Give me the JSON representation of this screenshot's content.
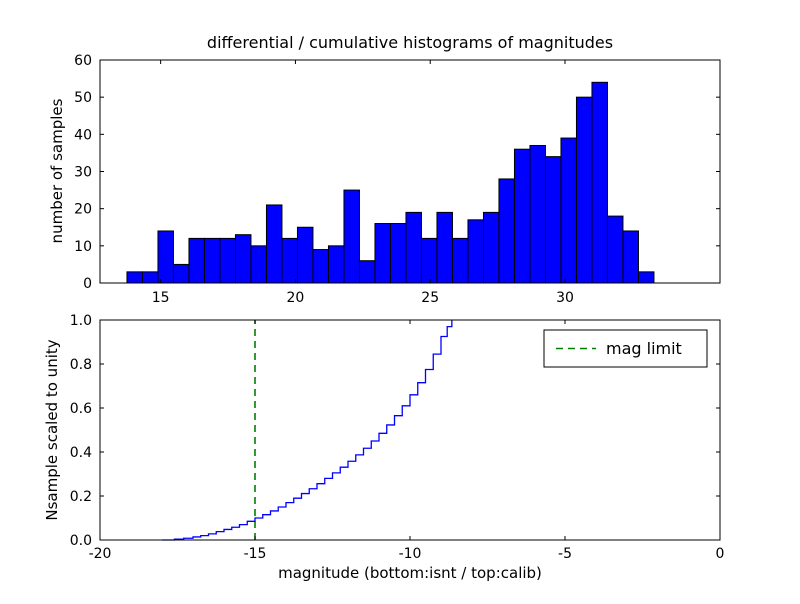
{
  "figure": {
    "background": "#ffffff",
    "frame_color": "#000000"
  },
  "chart_data": [
    {
      "type": "bar",
      "subtype": "histogram",
      "title": "differential / cumulative histograms of magnitudes",
      "xlabel": "",
      "ylabel": "number of samples",
      "bin_start": 13.75,
      "bin_width": 0.575,
      "values": [
        3,
        3,
        14,
        5,
        12,
        12,
        12,
        13,
        10,
        21,
        12,
        15,
        9,
        10,
        25,
        6,
        16,
        16,
        19,
        12,
        19,
        12,
        17,
        19,
        28,
        36,
        37,
        34,
        39,
        50,
        54,
        18,
        14,
        3
      ],
      "xlim": [
        12.75,
        35.75
      ],
      "ylim": [
        0,
        60
      ],
      "xticks": [
        15,
        20,
        25,
        30
      ],
      "xticklabels": [
        "15",
        "20",
        "25",
        "30"
      ],
      "yticks": [
        0,
        10,
        20,
        30,
        40,
        50,
        60
      ],
      "yticklabels": [
        "0",
        "10",
        "20",
        "30",
        "40",
        "50",
        "60"
      ],
      "bar_color": "#0000ff",
      "bar_edge_color": "#000000",
      "grid": false,
      "legend": null
    },
    {
      "type": "line",
      "subtype": "cumulative-step",
      "title": "",
      "xlabel": "magnitude (bottom:isnt / top:calib)",
      "ylabel": "Nsample scaled to unity",
      "x": [
        -18.0,
        -17.6,
        -17.3,
        -17.0,
        -16.75,
        -16.5,
        -16.25,
        -16.0,
        -15.75,
        -15.5,
        -15.25,
        -15.0,
        -14.75,
        -14.5,
        -14.25,
        -14.0,
        -13.75,
        -13.5,
        -13.25,
        -13.0,
        -12.75,
        -12.5,
        -12.25,
        -12.0,
        -11.75,
        -11.5,
        -11.25,
        -11.0,
        -10.75,
        -10.5,
        -10.25,
        -10.0,
        -9.75,
        -9.5,
        -9.25,
        -9.0,
        -8.8,
        -8.65
      ],
      "y": [
        0.0,
        0.004,
        0.008,
        0.014,
        0.02,
        0.028,
        0.038,
        0.048,
        0.058,
        0.07,
        0.085,
        0.1,
        0.115,
        0.132,
        0.15,
        0.17,
        0.19,
        0.211,
        0.233,
        0.256,
        0.28,
        0.305,
        0.331,
        0.358,
        0.387,
        0.417,
        0.45,
        0.485,
        0.523,
        0.565,
        0.61,
        0.66,
        0.715,
        0.775,
        0.845,
        0.925,
        0.97,
        1.0
      ],
      "xlim": [
        -20,
        0
      ],
      "ylim": [
        0.0,
        1.0
      ],
      "xticks": [
        -20,
        -15,
        -10,
        -5,
        0
      ],
      "xticklabels": [
        "-20",
        "-15",
        "-10",
        "-5",
        "0"
      ],
      "yticks": [
        0.0,
        0.2,
        0.4,
        0.6,
        0.8,
        1.0
      ],
      "yticklabels": [
        "0.0",
        "0.2",
        "0.4",
        "0.6",
        "0.8",
        "1.0"
      ],
      "line_color": "#0000ff",
      "grid": false,
      "annotations": [
        {
          "type": "vline",
          "x": -15,
          "color": "#008000",
          "dash": true,
          "label": "mag limit"
        }
      ],
      "legend": {
        "position": "upper right",
        "entries": [
          {
            "label": "mag limit",
            "color": "#008000",
            "dash": true
          }
        ]
      }
    }
  ]
}
